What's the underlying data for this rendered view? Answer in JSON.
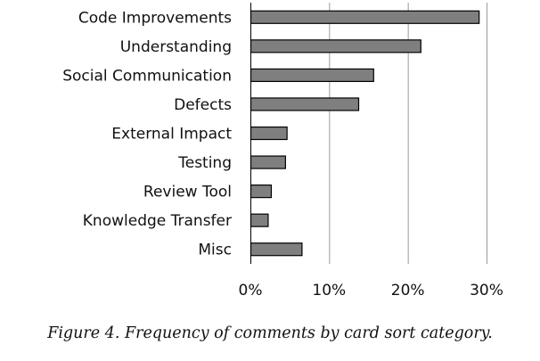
{
  "chart_data": {
    "type": "bar",
    "orientation": "horizontal",
    "categories": [
      "Code Improvements",
      "Understanding",
      "Social Communication",
      "Defects",
      "External Impact",
      "Testing",
      "Review Tool",
      "Knowledge Transfer",
      "Misc"
    ],
    "values": [
      29,
      21.6,
      15.6,
      13.7,
      4.6,
      4.4,
      2.6,
      2.2,
      6.5
    ],
    "x_ticks": [
      "0%",
      "10%",
      "20%",
      "30%"
    ],
    "x_tick_values": [
      0,
      10,
      20,
      30
    ],
    "xlim": [
      0,
      30
    ],
    "xlabel": "",
    "ylabel": "",
    "grid": true,
    "legend": "none",
    "bar_color": "#7f7f7f",
    "bar_edge_color": "#000000"
  },
  "caption": "Figure 4. Frequency of comments by card sort category."
}
